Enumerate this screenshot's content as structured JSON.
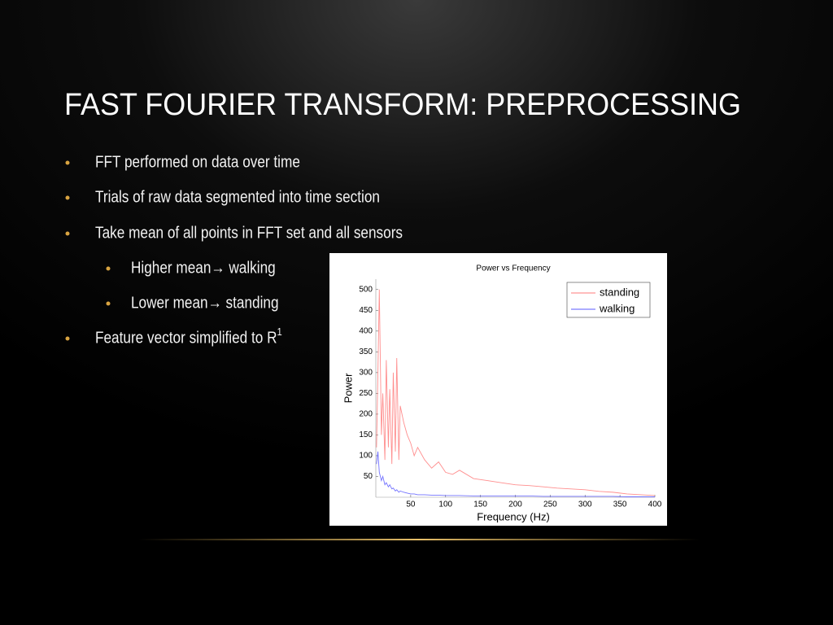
{
  "slide": {
    "title": "FAST FOURIER TRANSFORM: PREPROCESSING",
    "bullets": [
      {
        "text": "FFT performed on data over time"
      },
      {
        "text": "Trials of raw data segmented into time section"
      },
      {
        "text": "Take mean of all points in FFT set and all sensors",
        "sub": [
          {
            "text": "Higher mean→ walking"
          },
          {
            "text": "Lower mean→ standing"
          }
        ]
      },
      {
        "text": "Feature vector simplified to R",
        "sup": "1"
      }
    ]
  },
  "chart_data": {
    "type": "line",
    "title": "Power  vs Frequency",
    "x_label": "Frequency (Hz)",
    "y_label": "Power",
    "x": [
      1,
      3,
      5,
      8,
      10,
      13,
      15,
      18,
      20,
      23,
      25,
      28,
      30,
      33,
      35,
      40,
      45,
      50,
      55,
      60,
      70,
      80,
      90,
      100,
      110,
      120,
      140,
      160,
      180,
      200,
      220,
      240,
      260,
      280,
      300,
      320,
      340,
      360,
      380,
      400
    ],
    "series": [
      {
        "name": "standing",
        "color": "#ff7a7a",
        "values": [
          120,
          300,
          500,
          150,
          250,
          90,
          330,
          120,
          260,
          80,
          300,
          110,
          335,
          90,
          220,
          180,
          150,
          130,
          100,
          120,
          90,
          70,
          85,
          60,
          55,
          65,
          45,
          40,
          35,
          30,
          28,
          25,
          22,
          20,
          18,
          14,
          12,
          8,
          6,
          4
        ]
      },
      {
        "name": "walking",
        "color": "#5a5aff",
        "values": [
          80,
          110,
          60,
          40,
          50,
          30,
          35,
          25,
          30,
          20,
          22,
          15,
          18,
          12,
          15,
          12,
          10,
          8,
          8,
          6,
          6,
          5,
          5,
          4,
          4,
          4,
          3,
          3,
          3,
          3,
          3,
          2,
          2,
          2,
          2,
          2,
          2,
          1,
          1,
          1
        ]
      }
    ],
    "xlim": [
      0,
      400
    ],
    "xticks": [
      50,
      100,
      150,
      200,
      250,
      300,
      350,
      400
    ],
    "ylim": [
      0,
      525
    ],
    "yticks": [
      50,
      100,
      150,
      200,
      250,
      300,
      350,
      400,
      450,
      500
    ],
    "legend": "upper right"
  }
}
